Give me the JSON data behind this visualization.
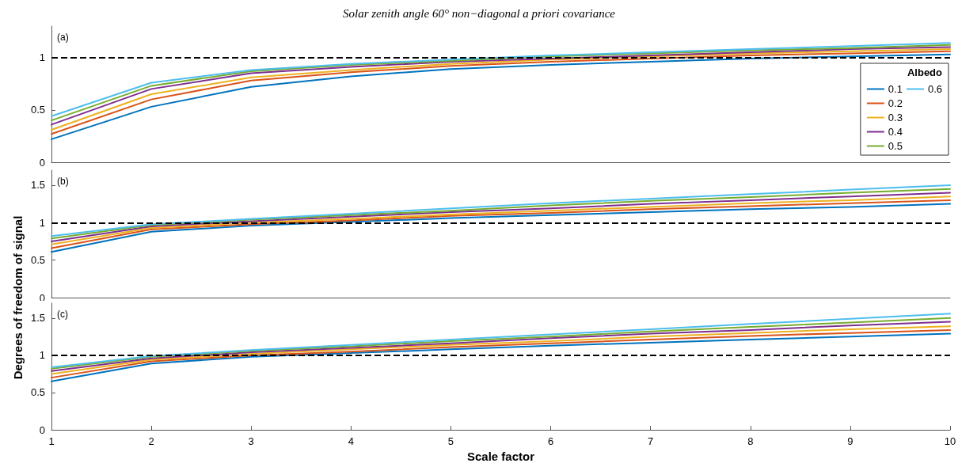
{
  "chart_data": [
    {
      "type": "line",
      "title": "Solar zenith angle 60° non−diagonal a priori covariance",
      "legend_title": "Albedo",
      "legend": "right",
      "annotations": [
        "(a)"
      ],
      "tick_labels": "y",
      "marker": "none",
      "line_style": "solid",
      "grid": false,
      "x": [
        1,
        2,
        3,
        4,
        5,
        6,
        7,
        8,
        9,
        10
      ],
      "xlim": [
        1,
        10
      ],
      "xticks": [
        1,
        2,
        3,
        4,
        5,
        6,
        7,
        8,
        9,
        10
      ],
      "ylim": [
        0,
        1.3
      ],
      "yticks": [
        0,
        0.5,
        1
      ],
      "ref_lines": [
        {
          "axis": "y",
          "value": 1,
          "label": null,
          "color": "#000000",
          "line_style": "dashed"
        }
      ],
      "series": [
        {
          "name": "0.1",
          "color": "#0072bd",
          "values": [
            0.22,
            0.53,
            0.72,
            0.82,
            0.89,
            0.93,
            0.96,
            0.99,
            1.01,
            1.03
          ]
        },
        {
          "name": "0.2",
          "color": "#d95319",
          "values": [
            0.27,
            0.6,
            0.78,
            0.86,
            0.92,
            0.96,
            0.99,
            1.02,
            1.04,
            1.06
          ]
        },
        {
          "name": "0.3",
          "color": "#edb120",
          "values": [
            0.31,
            0.65,
            0.81,
            0.88,
            0.94,
            0.98,
            1.01,
            1.04,
            1.06,
            1.08
          ]
        },
        {
          "name": "0.4",
          "color": "#7e2f8e",
          "values": [
            0.36,
            0.7,
            0.85,
            0.91,
            0.96,
            0.99,
            1.02,
            1.05,
            1.08,
            1.1
          ]
        },
        {
          "name": "0.5",
          "color": "#77ac30",
          "values": [
            0.4,
            0.73,
            0.87,
            0.93,
            0.97,
            1.01,
            1.04,
            1.07,
            1.09,
            1.12
          ]
        },
        {
          "name": "0.6",
          "color": "#4dbeee",
          "values": [
            0.44,
            0.76,
            0.88,
            0.94,
            0.98,
            1.02,
            1.05,
            1.08,
            1.11,
            1.14
          ]
        }
      ]
    },
    {
      "type": "line",
      "ylabel": "Degrees of freedom of signal",
      "annotations": [
        "(b)"
      ],
      "tick_labels": "y",
      "marker": "none",
      "line_style": "solid",
      "grid": false,
      "x": [
        1,
        2,
        3,
        4,
        5,
        6,
        7,
        8,
        9,
        10
      ],
      "xlim": [
        1,
        10
      ],
      "xticks": [
        1,
        2,
        3,
        4,
        5,
        6,
        7,
        8,
        9,
        10
      ],
      "ylim": [
        0,
        1.7
      ],
      "yticks": [
        0,
        0.5,
        1,
        1.5
      ],
      "ref_lines": [
        {
          "axis": "y",
          "value": 1,
          "label": null,
          "color": "#000000",
          "line_style": "dashed"
        }
      ],
      "series": [
        {
          "color": "#0072bd",
          "values": [
            0.61,
            0.88,
            0.96,
            1.01,
            1.06,
            1.1,
            1.14,
            1.18,
            1.21,
            1.25
          ]
        },
        {
          "color": "#d95319",
          "values": [
            0.66,
            0.91,
            0.98,
            1.03,
            1.09,
            1.13,
            1.18,
            1.22,
            1.26,
            1.3
          ]
        },
        {
          "color": "#edb120",
          "values": [
            0.71,
            0.93,
            1.0,
            1.05,
            1.11,
            1.16,
            1.21,
            1.26,
            1.3,
            1.35
          ]
        },
        {
          "color": "#7e2f8e",
          "values": [
            0.75,
            0.95,
            1.02,
            1.08,
            1.14,
            1.19,
            1.25,
            1.3,
            1.35,
            1.4
          ]
        },
        {
          "color": "#77ac30",
          "values": [
            0.79,
            0.97,
            1.04,
            1.1,
            1.16,
            1.23,
            1.29,
            1.34,
            1.4,
            1.45
          ]
        },
        {
          "color": "#4dbeee",
          "values": [
            0.82,
            0.98,
            1.05,
            1.12,
            1.19,
            1.26,
            1.32,
            1.38,
            1.44,
            1.5
          ]
        }
      ]
    },
    {
      "type": "line",
      "xlabel": "Scale factor",
      "annotations": [
        "(c)"
      ],
      "marker": "none",
      "line_style": "solid",
      "grid": false,
      "x": [
        1,
        2,
        3,
        4,
        5,
        6,
        7,
        8,
        9,
        10
      ],
      "xlim": [
        1,
        10
      ],
      "xticks": [
        1,
        2,
        3,
        4,
        5,
        6,
        7,
        8,
        9,
        10
      ],
      "ylim": [
        0,
        1.7
      ],
      "yticks": [
        0,
        0.5,
        1,
        1.5
      ],
      "ref_lines": [
        {
          "axis": "y",
          "value": 1,
          "label": null,
          "color": "#000000",
          "line_style": "dashed"
        }
      ],
      "series": [
        {
          "color": "#0072bd",
          "values": [
            0.65,
            0.89,
            0.98,
            1.03,
            1.08,
            1.13,
            1.17,
            1.21,
            1.25,
            1.29
          ]
        },
        {
          "color": "#d95319",
          "values": [
            0.7,
            0.92,
            1.0,
            1.05,
            1.11,
            1.16,
            1.21,
            1.26,
            1.3,
            1.34
          ]
        },
        {
          "color": "#edb120",
          "values": [
            0.75,
            0.94,
            1.02,
            1.08,
            1.14,
            1.19,
            1.25,
            1.3,
            1.35,
            1.39
          ]
        },
        {
          "color": "#7e2f8e",
          "values": [
            0.79,
            0.96,
            1.04,
            1.1,
            1.16,
            1.23,
            1.29,
            1.34,
            1.4,
            1.45
          ]
        },
        {
          "color": "#77ac30",
          "values": [
            0.82,
            0.98,
            1.06,
            1.12,
            1.19,
            1.25,
            1.32,
            1.38,
            1.44,
            1.5
          ]
        },
        {
          "color": "#4dbeee",
          "values": [
            0.84,
            0.99,
            1.07,
            1.14,
            1.21,
            1.28,
            1.35,
            1.42,
            1.49,
            1.56
          ]
        }
      ]
    }
  ]
}
